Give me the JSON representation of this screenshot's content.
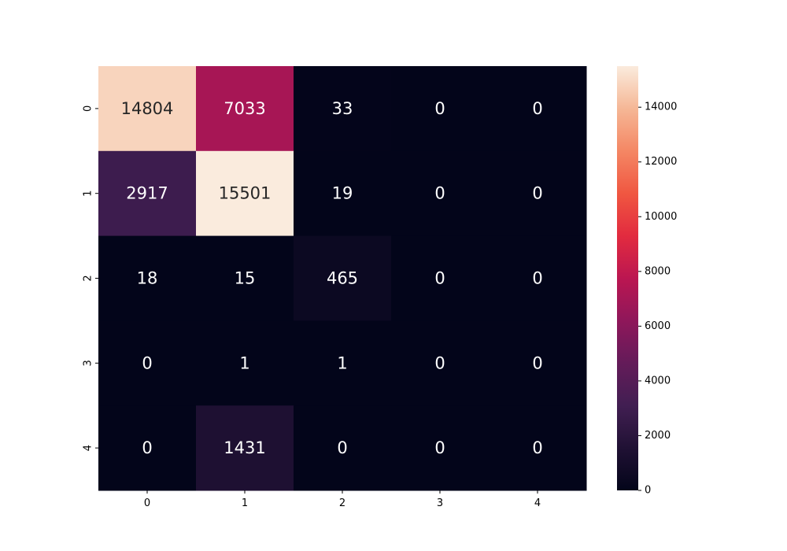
{
  "chart_data": {
    "type": "heatmap",
    "title": "",
    "xlabel": "",
    "ylabel": "",
    "x_categories": [
      "0",
      "1",
      "2",
      "3",
      "4"
    ],
    "y_categories": [
      "0",
      "1",
      "2",
      "3",
      "4"
    ],
    "values": [
      [
        14804,
        7033,
        33,
        0,
        0
      ],
      [
        2917,
        15501,
        19,
        0,
        0
      ],
      [
        18,
        15,
        465,
        0,
        0
      ],
      [
        0,
        1,
        1,
        0,
        0
      ],
      [
        0,
        1431,
        0,
        0,
        0
      ]
    ],
    "color_range": [
      0,
      15501
    ],
    "colormap": "rocket",
    "colorbar": {
      "ticks": [
        0,
        2000,
        4000,
        6000,
        8000,
        10000,
        12000,
        14000
      ],
      "tick_labels": [
        "0",
        "2000",
        "4000",
        "6000",
        "8000",
        "10000",
        "12000",
        "14000"
      ],
      "placement": "right"
    },
    "grid": false,
    "annotated": true
  }
}
